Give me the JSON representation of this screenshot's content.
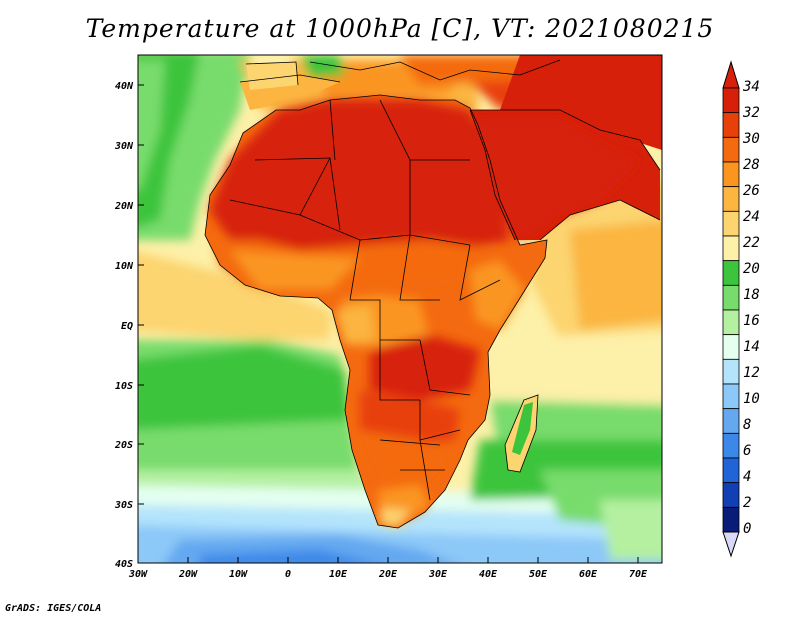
{
  "title": "Temperature at 1000hPa [C], VT: 2021080215",
  "footer": "GrADS: IGES/COLA",
  "map": {
    "lat_labels": [
      "40N",
      "30N",
      "20N",
      "10N",
      "EQ",
      "10S",
      "20S",
      "30S",
      "40S"
    ],
    "lon_labels": [
      "30W",
      "20W",
      "10W",
      "0",
      "10E",
      "20E",
      "30E",
      "40E",
      "50E",
      "60E",
      "70E"
    ]
  },
  "colorbar": {
    "labels": [
      "34",
      "32",
      "30",
      "28",
      "26",
      "24",
      "22",
      "20",
      "18",
      "16",
      "14",
      "12",
      "10",
      "8",
      "6",
      "4",
      "2",
      "0"
    ],
    "colors": [
      "#d7200a",
      "#e8400a",
      "#f46a10",
      "#fa9520",
      "#fbb540",
      "#fcd470",
      "#fdf0a8",
      "#3cc43c",
      "#78dc6c",
      "#b4f0a0",
      "#e4fff0",
      "#b4e4fc",
      "#8cc8f8",
      "#64a8f0",
      "#3c88e8",
      "#2064d8",
      "#1040b4",
      "#081c78"
    ]
  }
}
